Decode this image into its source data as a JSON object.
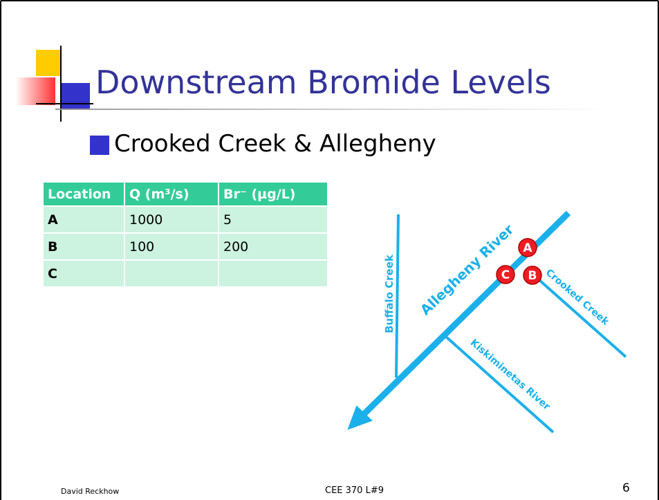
{
  "header": {
    "title": "Downstream Bromide Levels"
  },
  "bullet": "Crooked Creek & Allegheny",
  "table": {
    "headers": [
      "Location",
      "Q (m³/s)",
      "Br⁻ (µg/L)"
    ],
    "rows": [
      [
        "A",
        1000,
        5
      ],
      [
        "B",
        100,
        200
      ],
      [
        "C",
        null,
        null
      ]
    ]
  },
  "map": {
    "rivers": [
      "Allegheny River",
      "Buffalo Creek",
      "Crooked Creek",
      "Kiskiminetas River"
    ],
    "points": [
      "A",
      "B",
      "C"
    ]
  },
  "footer": {
    "author": "David Reckhow",
    "course": "CEE 370 L#9",
    "page": "6"
  }
}
